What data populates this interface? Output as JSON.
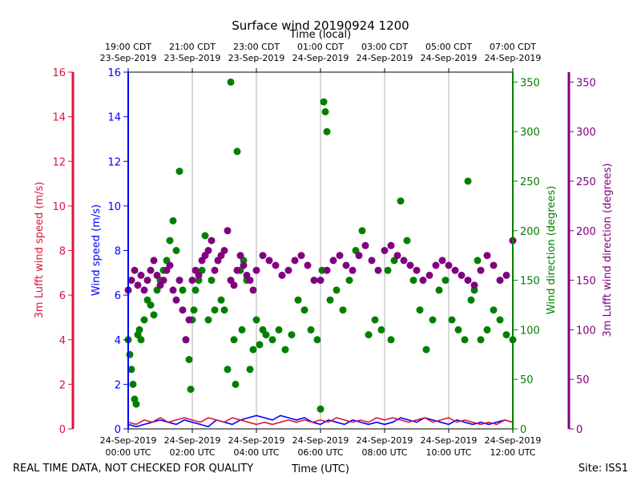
{
  "chart_data": {
    "type": "scatter",
    "title": "Surface wind 20190924 1200",
    "top_axis_title": "Time (local)",
    "bottom_axis_title": "Time (UTC)",
    "footer_left": "REAL TIME DATA, NOT CHECKED FOR QUALITY",
    "footer_right": "Site: ISS1",
    "x_range_hours_utc": [
      0,
      12
    ],
    "bottom_ticks": [
      {
        "hour": 0,
        "line1": "24-Sep-2019",
        "line2": "00:00 UTC"
      },
      {
        "hour": 2,
        "line1": "24-Sep-2019",
        "line2": "02:00 UTC"
      },
      {
        "hour": 4,
        "line1": "24-Sep-2019",
        "line2": "04:00 UTC"
      },
      {
        "hour": 6,
        "line1": "24-Sep-2019",
        "line2": "06:00 UTC"
      },
      {
        "hour": 8,
        "line1": "24-Sep-2019",
        "line2": "08:00 UTC"
      },
      {
        "hour": 10,
        "line1": "24-Sep-2019",
        "line2": "10:00 UTC"
      },
      {
        "hour": 12,
        "line1": "24-Sep-2019",
        "line2": "12:00 UTC"
      }
    ],
    "top_ticks": [
      {
        "hour": 0,
        "line1": "19:00 CDT",
        "line2": "23-Sep-2019"
      },
      {
        "hour": 2,
        "line1": "21:00 CDT",
        "line2": "23-Sep-2019"
      },
      {
        "hour": 4,
        "line1": "23:00 CDT",
        "line2": "23-Sep-2019"
      },
      {
        "hour": 6,
        "line1": "01:00 CDT",
        "line2": "24-Sep-2019"
      },
      {
        "hour": 8,
        "line1": "03:00 CDT",
        "line2": "24-Sep-2019"
      },
      {
        "hour": 10,
        "line1": "05:00 CDT",
        "line2": "24-Sep-2019"
      },
      {
        "hour": 12,
        "line1": "07:00 CDT",
        "line2": "24-Sep-2019"
      }
    ],
    "axes": {
      "lufft_speed": {
        "label": "3m Lufft wind speed (m/s)",
        "range": [
          0,
          16
        ],
        "ticks": [
          0,
          2,
          4,
          6,
          8,
          10,
          12,
          14,
          16
        ],
        "color": "#dc143c"
      },
      "wind_speed": {
        "label": "Wind speed (m/s)",
        "range": [
          0,
          16
        ],
        "ticks": [
          0,
          2,
          4,
          6,
          8,
          10,
          12,
          14,
          16
        ],
        "color": "#0000ff"
      },
      "wind_dir": {
        "label": "Wind direction (degrees)",
        "range": [
          0,
          360
        ],
        "ticks": [
          0,
          50,
          100,
          150,
          200,
          250,
          300,
          350
        ],
        "color": "#008000"
      },
      "lufft_dir": {
        "label": "3m Lufft wind direction (degrees)",
        "range": [
          0,
          360
        ],
        "ticks": [
          0,
          50,
          100,
          150,
          200,
          250,
          300,
          350
        ],
        "color": "#800080"
      }
    },
    "series": [
      {
        "name": "Wind speed (m/s)",
        "axis": "wind_speed",
        "kind": "line",
        "color": "#0000ff",
        "x": [
          0.0,
          0.25,
          0.5,
          0.75,
          1.0,
          1.25,
          1.5,
          1.75,
          2.0,
          2.25,
          2.5,
          2.75,
          3.0,
          3.25,
          3.5,
          3.75,
          4.0,
          4.25,
          4.5,
          4.75,
          5.0,
          5.25,
          5.5,
          5.75,
          6.0,
          6.25,
          6.5,
          6.75,
          7.0,
          7.25,
          7.5,
          7.75,
          8.0,
          8.25,
          8.5,
          8.75,
          9.0,
          9.25,
          9.5,
          9.75,
          10.0,
          10.25,
          10.5,
          10.75,
          11.0,
          11.25,
          11.5,
          11.75,
          12.0
        ],
        "values": [
          0.2,
          0.1,
          0.2,
          0.3,
          0.4,
          0.3,
          0.2,
          0.4,
          0.3,
          0.2,
          0.1,
          0.4,
          0.3,
          0.2,
          0.4,
          0.5,
          0.6,
          0.5,
          0.4,
          0.6,
          0.5,
          0.4,
          0.5,
          0.3,
          0.2,
          0.4,
          0.3,
          0.2,
          0.4,
          0.3,
          0.2,
          0.3,
          0.2,
          0.3,
          0.5,
          0.4,
          0.3,
          0.5,
          0.4,
          0.3,
          0.2,
          0.4,
          0.3,
          0.2,
          0.3,
          0.2,
          0.3,
          0.4,
          0.3
        ]
      },
      {
        "name": "3m Lufft wind speed (m/s)",
        "axis": "lufft_speed",
        "kind": "line",
        "color": "#dc143c",
        "x": [
          0.0,
          0.25,
          0.5,
          0.75,
          1.0,
          1.25,
          1.5,
          1.75,
          2.0,
          2.25,
          2.5,
          2.75,
          3.0,
          3.25,
          3.5,
          3.75,
          4.0,
          4.25,
          4.5,
          4.75,
          5.0,
          5.25,
          5.5,
          5.75,
          6.0,
          6.25,
          6.5,
          6.75,
          7.0,
          7.25,
          7.5,
          7.75,
          8.0,
          8.25,
          8.5,
          8.75,
          9.0,
          9.25,
          9.5,
          9.75,
          10.0,
          10.25,
          10.5,
          10.75,
          11.0,
          11.25,
          11.5,
          11.75,
          12.0
        ],
        "values": [
          0.3,
          0.2,
          0.4,
          0.3,
          0.5,
          0.3,
          0.4,
          0.5,
          0.4,
          0.3,
          0.5,
          0.4,
          0.3,
          0.5,
          0.4,
          0.3,
          0.2,
          0.3,
          0.2,
          0.3,
          0.4,
          0.3,
          0.4,
          0.3,
          0.4,
          0.3,
          0.5,
          0.4,
          0.3,
          0.4,
          0.3,
          0.5,
          0.4,
          0.5,
          0.4,
          0.3,
          0.4,
          0.5,
          0.3,
          0.4,
          0.5,
          0.3,
          0.4,
          0.3,
          0.2,
          0.3,
          0.2,
          0.4,
          0.3
        ]
      },
      {
        "name": "Wind direction (degrees)",
        "axis": "wind_dir",
        "kind": "scatter",
        "color": "#008000",
        "x": [
          0.0,
          0.05,
          0.1,
          0.15,
          0.2,
          0.25,
          0.3,
          0.35,
          0.4,
          0.5,
          0.6,
          0.7,
          0.8,
          0.9,
          1.0,
          1.1,
          1.2,
          1.3,
          1.4,
          1.5,
          1.6,
          1.7,
          1.8,
          1.9,
          1.95,
          2.0,
          2.05,
          2.1,
          2.2,
          2.3,
          2.4,
          2.5,
          2.6,
          2.7,
          2.8,
          2.9,
          3.0,
          3.1,
          3.2,
          3.3,
          3.35,
          3.4,
          3.5,
          3.55,
          3.6,
          3.7,
          3.8,
          3.9,
          4.0,
          4.1,
          4.2,
          4.3,
          4.5,
          4.7,
          4.9,
          5.1,
          5.3,
          5.5,
          5.7,
          5.9,
          6.0,
          6.05,
          6.1,
          6.15,
          6.2,
          6.3,
          6.5,
          6.7,
          6.9,
          7.1,
          7.3,
          7.5,
          7.7,
          7.9,
          8.1,
          8.2,
          8.3,
          8.5,
          8.7,
          8.9,
          9.1,
          9.3,
          9.5,
          9.7,
          9.9,
          10.1,
          10.3,
          10.5,
          10.6,
          10.7,
          10.8,
          10.9,
          11.0,
          11.2,
          11.4,
          11.6,
          11.8,
          12.0
        ],
        "values": [
          90,
          75,
          60,
          45,
          30,
          25,
          95,
          100,
          90,
          110,
          130,
          125,
          115,
          140,
          150,
          160,
          170,
          190,
          210,
          180,
          260,
          140,
          90,
          70,
          40,
          110,
          120,
          140,
          150,
          160,
          195,
          110,
          150,
          120,
          170,
          130,
          120,
          60,
          350,
          90,
          45,
          280,
          160,
          100,
          170,
          150,
          60,
          80,
          110,
          85,
          100,
          95,
          90,
          100,
          80,
          95,
          130,
          120,
          100,
          90,
          20,
          160,
          330,
          320,
          300,
          130,
          140,
          120,
          150,
          180,
          200,
          95,
          110,
          100,
          160,
          90,
          170,
          230,
          190,
          150,
          120,
          80,
          110,
          140,
          150,
          110,
          100,
          90,
          250,
          130,
          140,
          170,
          90,
          100,
          120,
          110,
          95,
          90
        ]
      },
      {
        "name": "3m Lufft wind direction (degrees)",
        "axis": "lufft_dir",
        "kind": "scatter",
        "color": "#800080",
        "x": [
          0.0,
          0.1,
          0.2,
          0.3,
          0.4,
          0.5,
          0.6,
          0.7,
          0.8,
          0.9,
          1.0,
          1.1,
          1.2,
          1.3,
          1.4,
          1.5,
          1.6,
          1.7,
          1.8,
          1.9,
          2.0,
          2.1,
          2.2,
          2.3,
          2.4,
          2.5,
          2.6,
          2.7,
          2.8,
          2.9,
          3.0,
          3.1,
          3.2,
          3.3,
          3.4,
          3.5,
          3.6,
          3.7,
          3.8,
          3.9,
          4.0,
          4.2,
          4.4,
          4.6,
          4.8,
          5.0,
          5.2,
          5.4,
          5.6,
          5.8,
          6.0,
          6.2,
          6.4,
          6.6,
          6.8,
          7.0,
          7.2,
          7.4,
          7.6,
          7.8,
          8.0,
          8.2,
          8.4,
          8.6,
          8.8,
          9.0,
          9.2,
          9.4,
          9.6,
          9.8,
          10.0,
          10.2,
          10.4,
          10.6,
          10.8,
          11.0,
          11.2,
          11.4,
          11.6,
          11.8,
          12.0
        ],
        "values": [
          140,
          150,
          160,
          145,
          155,
          140,
          150,
          160,
          170,
          155,
          145,
          150,
          160,
          165,
          140,
          130,
          150,
          120,
          90,
          110,
          150,
          160,
          155,
          170,
          175,
          180,
          190,
          160,
          170,
          175,
          180,
          200,
          150,
          145,
          160,
          175,
          165,
          155,
          150,
          140,
          160,
          175,
          170,
          165,
          155,
          160,
          170,
          175,
          165,
          150,
          150,
          160,
          170,
          175,
          165,
          160,
          175,
          185,
          170,
          160,
          180,
          185,
          175,
          170,
          165,
          160,
          150,
          155,
          165,
          170,
          165,
          160,
          155,
          150,
          145,
          160,
          175,
          165,
          150,
          155,
          190
        ]
      }
    ]
  }
}
